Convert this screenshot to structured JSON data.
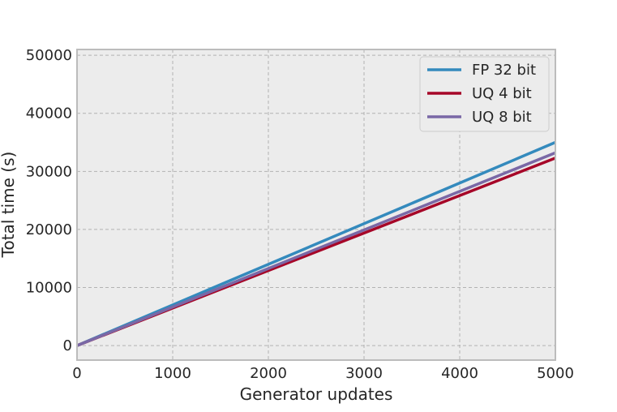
{
  "chart_data": {
    "type": "line",
    "title": "",
    "xlabel": "Generator updates",
    "ylabel": "Total time (s)",
    "xlim": [
      0,
      5000
    ],
    "ylim": [
      -2500,
      51000
    ],
    "xticks": [
      0,
      1000,
      2000,
      3000,
      4000,
      5000
    ],
    "yticks": [
      0,
      10000,
      20000,
      30000,
      40000,
      50000
    ],
    "x_tick_labels": [
      "0",
      "1000",
      "2000",
      "3000",
      "4000",
      "5000"
    ],
    "y_tick_labels": [
      "0",
      "10000",
      "20000",
      "30000",
      "40000",
      "50000"
    ],
    "grid": true,
    "legend_position": "top-right",
    "series": [
      {
        "name": "FP 32 bit",
        "color": "#348abd",
        "x": [
          0,
          5000
        ],
        "y": [
          0,
          35000
        ]
      },
      {
        "name": "UQ 4 bit",
        "color": "#a60628",
        "x": [
          0,
          5000
        ],
        "y": [
          0,
          32300
        ]
      },
      {
        "name": "UQ 8 bit",
        "color": "#7a68a6",
        "x": [
          0,
          5000
        ],
        "y": [
          0,
          33200
        ]
      }
    ]
  }
}
